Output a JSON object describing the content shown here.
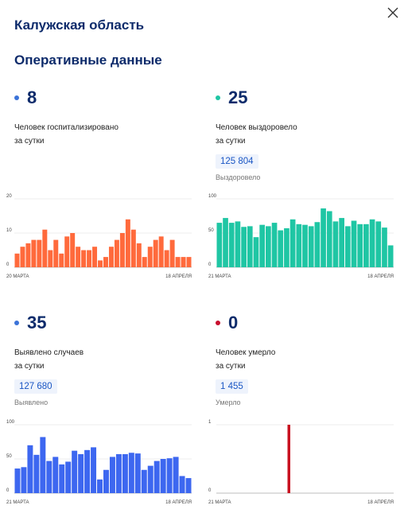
{
  "header": {
    "region": "Калужская область",
    "section": "Оперативные данные"
  },
  "cards": [
    {
      "value": "8",
      "desc_line1": "Человек госпитализировано",
      "desc_line2": "за сутки",
      "dot_color": "#3b73d8",
      "chart_color": "#ff6a3c"
    },
    {
      "value": "25",
      "desc_line1": "Человек выздоровело",
      "desc_line2": "за сутки",
      "total": "125 804",
      "total_label": "Выздоровело",
      "dot_color": "#1fc6a4",
      "chart_color": "#1fc6a4"
    },
    {
      "value": "35",
      "desc_line1": "Выявлено случаев",
      "desc_line2": "за сутки",
      "total": "127 680",
      "total_label": "Выявлено",
      "dot_color": "#3b73d8",
      "chart_color": "#3d67f0"
    },
    {
      "value": "0",
      "desc_line1": "Человек умерло",
      "desc_line2": "за сутки",
      "total": "1 455",
      "total_label": "Умерло",
      "dot_color": "#c8102e",
      "chart_color": "#c8101e"
    }
  ],
  "chart_data": [
    {
      "type": "bar",
      "ylim": [
        0,
        20
      ],
      "yticks": [
        0,
        10,
        20
      ],
      "start_label": "20 МАРТА",
      "end_label": "18 АПРЕЛЯ",
      "values": [
        4,
        6,
        7,
        8,
        8,
        11,
        5,
        8,
        4,
        9,
        10,
        6,
        5,
        5,
        6,
        2,
        3,
        6,
        8,
        10,
        14,
        11,
        7,
        3,
        6,
        8,
        9,
        5,
        8,
        3,
        3,
        3
      ]
    },
    {
      "type": "bar",
      "ylim": [
        0,
        100
      ],
      "yticks": [
        0,
        50,
        100
      ],
      "start_label": "21 МАРТА",
      "end_label": "18 АПРЕЛЯ",
      "values": [
        65,
        72,
        65,
        67,
        59,
        60,
        44,
        62,
        60,
        65,
        54,
        57,
        70,
        63,
        62,
        60,
        66,
        86,
        82,
        67,
        72,
        60,
        68,
        63,
        63,
        70,
        67,
        58,
        32
      ]
    },
    {
      "type": "bar",
      "ylim": [
        0,
        100
      ],
      "yticks": [
        0,
        50,
        100
      ],
      "start_label": "21 МАРТА",
      "end_label": "18 АПРЕЛЯ",
      "values": [
        36,
        38,
        70,
        56,
        82,
        47,
        53,
        42,
        46,
        62,
        57,
        63,
        67,
        20,
        34,
        53,
        57,
        57,
        59,
        58,
        34,
        40,
        47,
        50,
        51,
        53,
        25,
        22
      ]
    },
    {
      "type": "bar",
      "ylim": [
        0,
        1
      ],
      "yticks": [
        0,
        1
      ],
      "start_label": "21 МАРТА",
      "end_label": "18 АПРЕЛЯ",
      "values": [
        0,
        0,
        0,
        0,
        0,
        0,
        0,
        0,
        0,
        0,
        0,
        0,
        0,
        0,
        0,
        0,
        0,
        0,
        0,
        0,
        0,
        0,
        1,
        0,
        0,
        0,
        0,
        0,
        0,
        0,
        0,
        0,
        0,
        0,
        0,
        0,
        0,
        0,
        0,
        0,
        0,
        0,
        0,
        0,
        0,
        0,
        0,
        0,
        0,
        0,
        0,
        0,
        0,
        0,
        0
      ]
    }
  ]
}
